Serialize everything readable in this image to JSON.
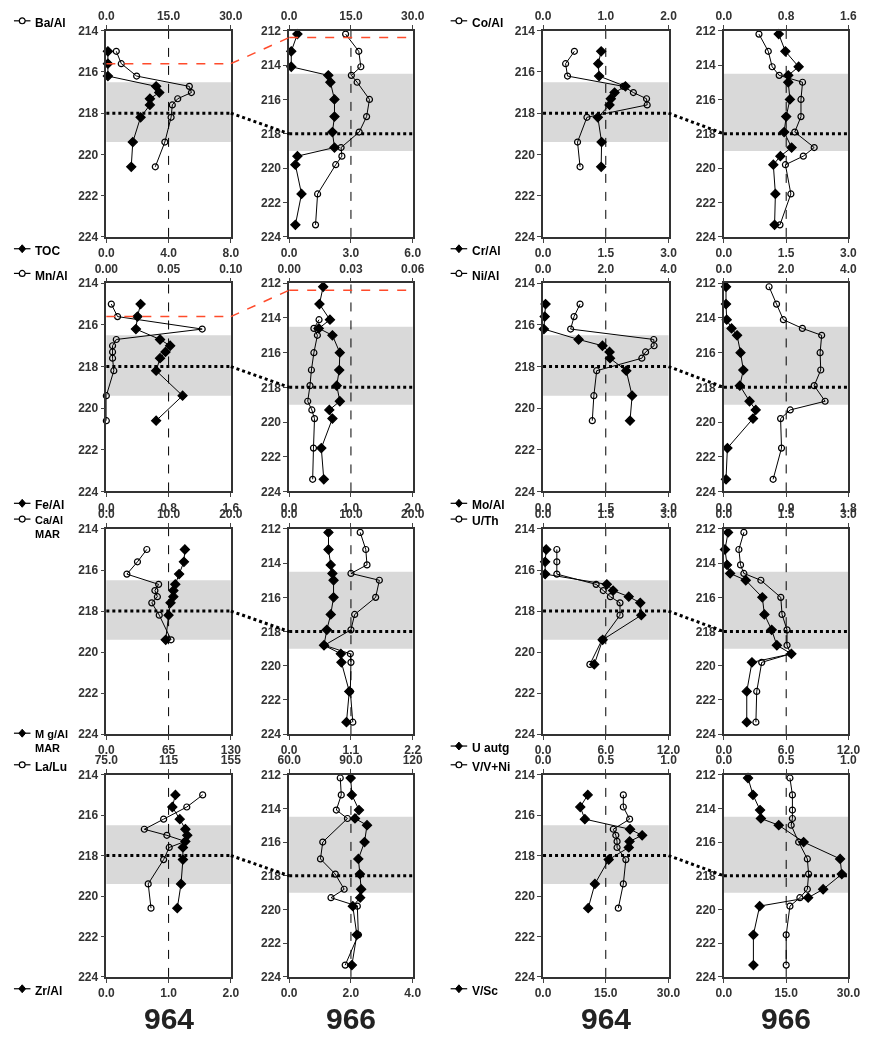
{
  "chart_data": [
    {
      "type": "line",
      "orientation": "horizontal",
      "x": [
        215.0,
        215.6,
        216.2,
        216.7,
        217.0,
        217.3,
        217.6,
        218.2,
        219.4,
        220.6
      ],
      "ylim": [
        224,
        214
      ],
      "yticks": [
        214,
        216,
        218,
        220,
        222,
        224
      ],
      "xlim": [
        0,
        8
      ],
      "xticks": [
        {
          "value": 0,
          "label": "0.0"
        },
        {
          "value": 4,
          "label": "4.0"
        },
        {
          "value": 8,
          "label": "8.0"
        }
      ],
      "x2lim": [
        0,
        30
      ],
      "x2ticks": [
        {
          "value": 0,
          "label": "0.0"
        },
        {
          "value": 15,
          "label": "15.0"
        },
        {
          "value": 30,
          "label": "30.0"
        }
      ],
      "legend": "left",
      "series": [
        {
          "name": "Ba/Al",
          "color": "#000000",
          "axis": "x2",
          "marker": "circle",
          "values": [
            2.4,
            3.6,
            7.3,
            20.0,
            20.5,
            17.2,
            15.9,
            15.6,
            14.1,
            11.8
          ]
        },
        {
          "name": "TOC",
          "color": "#000000",
          "marker": "diamond",
          "values": [
            0.1,
            0.1,
            0.1,
            3.2,
            3.4,
            2.8,
            2.8,
            2.2,
            1.7,
            1.6
          ]
        }
      ],
      "bands": [
        {
          "axis": "y",
          "from": 216.5,
          "to": 219.4,
          "color": "#d9d9d9"
        }
      ],
      "ref_lines": [
        {
          "axis": "x",
          "value": 4,
          "color": "#000000",
          "line_style": "dashed"
        },
        {
          "axis": "y",
          "value": 215.6,
          "color": "#ff4b2b",
          "line_style": "dashed"
        },
        {
          "axis": "y",
          "value": 218.0,
          "color": "#000000",
          "line_style": "dotted"
        }
      ]
    },
    {
      "type": "line",
      "orientation": "horizontal",
      "x": [
        212.2,
        213.2,
        214.1,
        214.6,
        215.0,
        216.0,
        217.0,
        217.9,
        218.8,
        219.3,
        219.8,
        221.5,
        223.3
      ],
      "ylim": [
        224,
        212
      ],
      "yticks": [
        212,
        214,
        216,
        218,
        220,
        222,
        224
      ],
      "xlim": [
        0,
        6
      ],
      "xticks": [
        {
          "value": 0,
          "label": "0.0"
        },
        {
          "value": 3,
          "label": "3.0"
        },
        {
          "value": 6,
          "label": "6.0"
        }
      ],
      "x2lim": [
        0,
        30
      ],
      "x2ticks": [
        {
          "value": 0,
          "label": "0.0"
        },
        {
          "value": 15,
          "label": "15.0"
        },
        {
          "value": 30,
          "label": "30.0"
        }
      ],
      "series": [
        {
          "color": "#000000",
          "axis": "x2",
          "marker": "circle",
          "values": [
            13.7,
            16.9,
            17.4,
            15.1,
            16.5,
            19.5,
            18.8,
            17.0,
            12.6,
            12.8,
            11.3,
            6.9,
            6.4
          ]
        },
        {
          "color": "#000000",
          "marker": "diamond",
          "values": [
            0.4,
            0.1,
            0.1,
            1.9,
            2.0,
            2.2,
            2.2,
            2.1,
            2.2,
            0.4,
            0.3,
            0.6,
            0.3
          ]
        }
      ],
      "bands": [
        {
          "axis": "y",
          "from": 214.5,
          "to": 219.0,
          "color": "#d9d9d9"
        }
      ],
      "ref_lines": [
        {
          "axis": "x",
          "value": 3,
          "color": "#000000",
          "line_style": "dashed"
        },
        {
          "axis": "y",
          "value": 212.4,
          "color": "#ff4b2b",
          "line_style": "dashed"
        },
        {
          "axis": "y",
          "value": 218.0,
          "color": "#000000",
          "line_style": "dotted"
        }
      ]
    },
    {
      "type": "line",
      "orientation": "horizontal",
      "x": [
        215.0,
        215.6,
        216.2,
        216.7,
        217.0,
        217.3,
        217.6,
        218.2,
        219.4,
        220.6
      ],
      "ylim": [
        224,
        214
      ],
      "yticks": [
        214,
        216,
        218,
        220,
        222,
        224
      ],
      "xlim": [
        0,
        3
      ],
      "xticks": [
        {
          "value": 0,
          "label": "0.0"
        },
        {
          "value": 1.5,
          "label": "1.5"
        },
        {
          "value": 3,
          "label": "3.0"
        }
      ],
      "x2lim": [
        0,
        2
      ],
      "x2ticks": [
        {
          "value": 0,
          "label": "0.0"
        },
        {
          "value": 1,
          "label": "1.0"
        },
        {
          "value": 2,
          "label": "2.0"
        }
      ],
      "legend": "left",
      "series": [
        {
          "name": "Co/Al",
          "color": "#000000",
          "axis": "x2",
          "marker": "circle",
          "values": [
            0.5,
            0.36,
            0.39,
            1.28,
            1.44,
            1.65,
            1.66,
            0.7,
            0.55,
            0.59
          ]
        },
        {
          "name": "Cr/Al",
          "color": "#000000",
          "marker": "diamond",
          "values": [
            1.39,
            1.32,
            1.34,
            1.97,
            1.71,
            1.62,
            1.59,
            1.31,
            1.4,
            1.39
          ]
        }
      ],
      "bands": [
        {
          "axis": "y",
          "from": 216.5,
          "to": 219.4,
          "color": "#d9d9d9"
        }
      ],
      "ref_lines": [
        {
          "axis": "x",
          "value": 1.5,
          "color": "#000000",
          "line_style": "dashed"
        },
        {
          "axis": "y",
          "value": 218.0,
          "color": "#000000",
          "line_style": "dotted"
        }
      ]
    },
    {
      "type": "line",
      "orientation": "horizontal",
      "x": [
        212.2,
        213.2,
        214.1,
        214.6,
        215.0,
        216.0,
        217.0,
        217.9,
        218.8,
        219.3,
        219.8,
        221.5,
        223.3
      ],
      "ylim": [
        224,
        212
      ],
      "yticks": [
        212,
        214,
        216,
        218,
        220,
        222,
        224
      ],
      "xlim": [
        0,
        3
      ],
      "xticks": [
        {
          "value": 0,
          "label": "0.0"
        },
        {
          "value": 1.5,
          "label": "1.5"
        },
        {
          "value": 3,
          "label": "3.0"
        }
      ],
      "x2lim": [
        0,
        1.6
      ],
      "x2ticks": [
        {
          "value": 0,
          "label": "0.0"
        },
        {
          "value": 0.8,
          "label": "0.8"
        },
        {
          "value": 1.6,
          "label": "1.6"
        }
      ],
      "series": [
        {
          "color": "#000000",
          "axis": "x2",
          "marker": "circle",
          "values": [
            0.45,
            0.57,
            0.62,
            0.71,
            1.01,
            0.99,
            0.99,
            0.91,
            1.16,
            1.02,
            0.79,
            0.86,
            0.72
          ]
        },
        {
          "color": "#000000",
          "marker": "diamond",
          "values": [
            1.32,
            1.48,
            1.8,
            1.55,
            1.55,
            1.59,
            1.5,
            1.45,
            1.63,
            1.36,
            1.19,
            1.24,
            1.22
          ]
        }
      ],
      "bands": [
        {
          "axis": "y",
          "from": 214.5,
          "to": 219.0,
          "color": "#d9d9d9"
        }
      ],
      "ref_lines": [
        {
          "axis": "x",
          "value": 1.5,
          "color": "#000000",
          "line_style": "dashed"
        },
        {
          "axis": "y",
          "value": 218.0,
          "color": "#000000",
          "line_style": "dotted"
        }
      ]
    },
    {
      "type": "line",
      "orientation": "horizontal",
      "x": [
        215.0,
        215.6,
        216.2,
        216.7,
        217.0,
        217.3,
        217.6,
        218.2,
        219.4,
        220.6
      ],
      "ylim": [
        224,
        214
      ],
      "yticks": [
        214,
        216,
        218,
        220,
        222,
        224
      ],
      "xlim": [
        0,
        1.6
      ],
      "xticks": [
        {
          "value": 0,
          "label": "0.0"
        },
        {
          "value": 0.8,
          "label": "0.8"
        },
        {
          "value": 1.6,
          "label": "1.6"
        }
      ],
      "x2lim": [
        0,
        0.1
      ],
      "x2ticks": [
        {
          "value": 0,
          "label": "0.00"
        },
        {
          "value": 0.05,
          "label": "0.05"
        },
        {
          "value": 0.1,
          "label": "0.10"
        }
      ],
      "legend": "left",
      "series": [
        {
          "name": "Mn/Al",
          "color": "#000000",
          "axis": "x2",
          "marker": "circle",
          "values": [
            0.004,
            0.009,
            0.077,
            0.008,
            0.005,
            0.005,
            0.005,
            0.006,
            0.0,
            0.0
          ]
        },
        {
          "name": "Fe/Al",
          "color": "#000000",
          "marker": "diamond",
          "values": [
            0.44,
            0.4,
            0.38,
            0.69,
            0.82,
            0.76,
            0.69,
            0.64,
            0.98,
            0.64
          ]
        }
      ],
      "bands": [
        {
          "axis": "y",
          "from": 216.5,
          "to": 219.4,
          "color": "#d9d9d9"
        }
      ],
      "ref_lines": [
        {
          "axis": "x",
          "value": 0.8,
          "color": "#000000",
          "line_style": "dashed"
        },
        {
          "axis": "y",
          "value": 215.6,
          "color": "#ff4b2b",
          "line_style": "dashed"
        },
        {
          "axis": "y",
          "value": 218.0,
          "color": "#000000",
          "line_style": "dotted"
        }
      ]
    },
    {
      "type": "line",
      "orientation": "horizontal",
      "x": [
        212.2,
        213.2,
        214.1,
        214.6,
        215.0,
        216.0,
        217.0,
        217.9,
        218.8,
        219.3,
        219.8,
        221.5,
        223.3
      ],
      "ylim": [
        224,
        212
      ],
      "yticks": [
        212,
        214,
        216,
        218,
        220,
        222,
        224
      ],
      "xlim": [
        0,
        2
      ],
      "xticks": [
        {
          "value": 0,
          "label": "0.0"
        },
        {
          "value": 1,
          "label": "1.0"
        },
        {
          "value": 2,
          "label": "2.0"
        }
      ],
      "x2lim": [
        0,
        0.06
      ],
      "x2ticks": [
        {
          "value": 0,
          "label": "0.00"
        },
        {
          "value": 0.03,
          "label": "0.03"
        },
        {
          "value": 0.06,
          "label": "0.06"
        }
      ],
      "series": [
        {
          "color": "#000000",
          "axis": "x2",
          "marker": "circle",
          "values": [
            null,
            null,
            0.0145,
            0.012,
            0.0137,
            0.012,
            0.0108,
            0.0101,
            0.009,
            0.011,
            0.0123,
            0.0118,
            0.0114
          ]
        },
        {
          "color": "#000000",
          "marker": "diamond",
          "values": [
            0.55,
            0.49,
            0.66,
            0.48,
            0.7,
            0.82,
            0.81,
            0.77,
            0.82,
            0.65,
            0.7,
            0.52,
            0.56
          ]
        }
      ],
      "bands": [
        {
          "axis": "y",
          "from": 214.5,
          "to": 219.0,
          "color": "#d9d9d9"
        }
      ],
      "ref_lines": [
        {
          "axis": "x",
          "value": 1,
          "color": "#000000",
          "line_style": "dashed"
        },
        {
          "axis": "y",
          "value": 212.4,
          "color": "#ff4b2b",
          "line_style": "dashed"
        },
        {
          "axis": "y",
          "value": 218.0,
          "color": "#000000",
          "line_style": "dotted"
        }
      ]
    },
    {
      "type": "line",
      "orientation": "horizontal",
      "x": [
        215.0,
        215.6,
        216.2,
        216.7,
        217.0,
        217.3,
        217.6,
        218.2,
        219.4,
        220.6
      ],
      "ylim": [
        224,
        214
      ],
      "yticks": [
        214,
        216,
        218,
        220,
        222,
        224
      ],
      "xlim": [
        0,
        3
      ],
      "xticks": [
        {
          "value": 0,
          "label": "0.0"
        },
        {
          "value": 1.5,
          "label": "1.5"
        },
        {
          "value": 3,
          "label": "3.0"
        }
      ],
      "x2lim": [
        0,
        4
      ],
      "x2ticks": [
        {
          "value": 0,
          "label": "0.0"
        },
        {
          "value": 2,
          "label": "2.0"
        },
        {
          "value": 4,
          "label": "4.0"
        }
      ],
      "legend": "left",
      "series": [
        {
          "name": "Ni/Al",
          "color": "#000000",
          "axis": "x2",
          "marker": "circle",
          "values": [
            1.18,
            0.99,
            0.88,
            3.53,
            3.54,
            3.27,
            3.15,
            1.71,
            1.62,
            1.57
          ]
        },
        {
          "name": "Mo/Al",
          "color": "#000000",
          "marker": "diamond",
          "values": [
            0.06,
            0.04,
            0.02,
            0.85,
            1.42,
            1.59,
            1.6,
            1.99,
            2.13,
            2.08
          ]
        }
      ],
      "bands": [
        {
          "axis": "y",
          "from": 216.5,
          "to": 219.4,
          "color": "#d9d9d9"
        }
      ],
      "ref_lines": [
        {
          "axis": "x",
          "value": 1.5,
          "color": "#000000",
          "line_style": "dashed"
        },
        {
          "axis": "y",
          "value": 218.0,
          "color": "#000000",
          "line_style": "dotted"
        }
      ]
    },
    {
      "type": "line",
      "orientation": "horizontal",
      "x": [
        212.2,
        213.2,
        214.1,
        214.6,
        215.0,
        216.0,
        217.0,
        217.9,
        218.8,
        219.3,
        219.8,
        221.5,
        223.3
      ],
      "ylim": [
        224,
        212
      ],
      "yticks": [
        212,
        214,
        216,
        218,
        220,
        222,
        224
      ],
      "xlim": [
        0,
        1.8
      ],
      "xticks": [
        {
          "value": 0,
          "label": "0.0"
        },
        {
          "value": 0.9,
          "label": "0.9"
        },
        {
          "value": 1.8,
          "label": "1.8"
        }
      ],
      "x2lim": [
        0,
        4
      ],
      "x2ticks": [
        {
          "value": 0,
          "label": "0.0"
        },
        {
          "value": 2,
          "label": "2.0"
        },
        {
          "value": 4,
          "label": "4.0"
        }
      ],
      "series": [
        {
          "color": "#000000",
          "axis": "x2",
          "marker": "circle",
          "values": [
            1.45,
            1.69,
            1.91,
            2.52,
            3.14,
            3.09,
            3.11,
            2.9,
            3.25,
            2.13,
            1.82,
            1.85,
            1.58
          ]
        },
        {
          "color": "#000000",
          "marker": "diamond",
          "values": [
            0.03,
            0.03,
            0.04,
            0.11,
            0.19,
            0.24,
            0.28,
            0.23,
            0.37,
            0.46,
            0.42,
            0.05,
            0.03
          ]
        }
      ],
      "bands": [
        {
          "axis": "y",
          "from": 214.5,
          "to": 219.0,
          "color": "#d9d9d9"
        }
      ],
      "ref_lines": [
        {
          "axis": "x",
          "value": 0.9,
          "color": "#000000",
          "line_style": "dashed"
        },
        {
          "axis": "y",
          "value": 218.0,
          "color": "#000000",
          "line_style": "dotted"
        }
      ]
    },
    {
      "type": "line",
      "orientation": "horizontal",
      "x": [
        215.0,
        215.6,
        216.2,
        216.7,
        217.0,
        217.3,
        217.6,
        218.2,
        219.4
      ],
      "ylim": [
        224,
        214
      ],
      "yticks": [
        214,
        216,
        218,
        220,
        222,
        224
      ],
      "xlim": [
        0,
        130
      ],
      "xticks": [
        {
          "value": 0,
          "label": "0.0"
        },
        {
          "value": 65,
          "label": "65"
        },
        {
          "value": 130,
          "label": "130"
        }
      ],
      "x2lim": [
        0,
        20
      ],
      "x2ticks": [
        {
          "value": 0,
          "label": "0.0"
        },
        {
          "value": 10,
          "label": "10.0"
        },
        {
          "value": 20,
          "label": "20.0"
        }
      ],
      "legend": "left",
      "series": [
        {
          "name": "Ca/Al MAR",
          "color": "#000000",
          "axis": "x2",
          "marker": "circle",
          "values": [
            6.5,
            5.0,
            3.3,
            8.4,
            7.8,
            8.2,
            7.3,
            8.5,
            10.4
          ]
        },
        {
          "name": "M g/Al MAR",
          "color": "#000000",
          "marker": "diamond",
          "values": [
            82,
            81,
            76,
            72,
            70,
            70,
            67,
            65,
            62
          ]
        }
      ],
      "bands": [
        {
          "axis": "y",
          "from": 216.5,
          "to": 219.4,
          "color": "#d9d9d9"
        }
      ],
      "ref_lines": [
        {
          "axis": "x",
          "value": 65,
          "color": "#000000",
          "line_style": "dashed"
        },
        {
          "axis": "y",
          "value": 218.0,
          "color": "#000000",
          "line_style": "dotted"
        }
      ]
    },
    {
      "type": "line",
      "orientation": "horizontal",
      "x": [
        212.2,
        213.2,
        214.1,
        214.6,
        215.0,
        216.0,
        217.0,
        217.9,
        218.8,
        219.3,
        219.8,
        221.5,
        223.3
      ],
      "ylim": [
        224,
        212
      ],
      "yticks": [
        212,
        214,
        216,
        218,
        220,
        222,
        224
      ],
      "xlim": [
        0,
        2.2
      ],
      "xticks": [
        {
          "value": 0,
          "label": "0.0"
        },
        {
          "value": 1.1,
          "label": "1.1"
        },
        {
          "value": 2.2,
          "label": "2.2"
        }
      ],
      "x2lim": [
        0,
        20
      ],
      "x2ticks": [
        {
          "value": 0,
          "label": "0.0"
        },
        {
          "value": 10,
          "label": "10.0"
        },
        {
          "value": 20,
          "label": "20.0"
        }
      ],
      "series": [
        {
          "color": "#000000",
          "axis": "x2",
          "marker": "circle",
          "values": [
            11.5,
            12.4,
            12.6,
            10.0,
            14.6,
            14.0,
            10.6,
            10.0,
            5.7,
            9.9,
            10.0,
            9.9,
            10.3
          ]
        },
        {
          "color": "#000000",
          "marker": "diamond",
          "values": [
            0.7,
            0.7,
            0.74,
            0.77,
            0.79,
            0.79,
            0.74,
            0.67,
            0.62,
            0.92,
            0.93,
            1.07,
            1.02
          ]
        }
      ],
      "bands": [
        {
          "axis": "y",
          "from": 214.5,
          "to": 219.0,
          "color": "#d9d9d9"
        }
      ],
      "ref_lines": [
        {
          "axis": "x",
          "value": 1.1,
          "color": "#000000",
          "line_style": "dashed"
        },
        {
          "axis": "y",
          "value": 218.0,
          "color": "#000000",
          "line_style": "dotted"
        }
      ]
    },
    {
      "type": "line",
      "orientation": "horizontal",
      "x": [
        215.0,
        215.6,
        216.2,
        216.7,
        217.0,
        217.3,
        217.6,
        218.2,
        219.4,
        220.6
      ],
      "ylim": [
        224,
        214
      ],
      "yticks": [
        214,
        216,
        218,
        220,
        222,
        224
      ],
      "xlim": [
        0,
        12
      ],
      "xticks": [
        {
          "value": 0,
          "label": "0.0"
        },
        {
          "value": 6,
          "label": "6.0"
        },
        {
          "value": 12,
          "label": "12.0"
        }
      ],
      "x2lim": [
        0,
        3
      ],
      "x2ticks": [
        {
          "value": 0,
          "label": "0.0"
        },
        {
          "value": 1.5,
          "label": "1.5"
        },
        {
          "value": 3,
          "label": "3.0"
        }
      ],
      "legend": "left",
      "series": [
        {
          "name": "U/Th",
          "color": "#000000",
          "axis": "x2",
          "marker": "circle",
          "values": [
            0.33,
            0.33,
            0.33,
            1.27,
            1.44,
            1.61,
            1.84,
            1.84,
            1.41,
            1.12
          ]
        },
        {
          "name": "U autg",
          "color": "#000000",
          "marker": "diamond",
          "values": [
            0.3,
            0.2,
            0.2,
            6.1,
            6.7,
            8.2,
            9.3,
            9.4,
            5.7,
            4.9
          ]
        }
      ],
      "bands": [
        {
          "axis": "y",
          "from": 216.5,
          "to": 219.4,
          "color": "#d9d9d9"
        }
      ],
      "ref_lines": [
        {
          "axis": "x",
          "value": 6,
          "color": "#000000",
          "line_style": "dashed"
        },
        {
          "axis": "y",
          "value": 218.0,
          "color": "#000000",
          "line_style": "dotted"
        }
      ]
    },
    {
      "type": "line",
      "orientation": "horizontal",
      "x": [
        212.2,
        213.2,
        214.1,
        214.6,
        215.0,
        216.0,
        217.0,
        217.9,
        218.8,
        219.3,
        219.8,
        221.5,
        223.3
      ],
      "ylim": [
        224,
        212
      ],
      "yticks": [
        212,
        214,
        216,
        218,
        220,
        222,
        224
      ],
      "xlim": [
        0,
        12
      ],
      "xticks": [
        {
          "value": 0,
          "label": "0.0"
        },
        {
          "value": 6,
          "label": "6.0"
        },
        {
          "value": 12,
          "label": "12.0"
        }
      ],
      "x2lim": [
        0,
        3
      ],
      "x2ticks": [
        {
          "value": 0,
          "label": "0.0"
        },
        {
          "value": 1.5,
          "label": "1.5"
        },
        {
          "value": 3,
          "label": "3.0"
        }
      ],
      "series": [
        {
          "color": "#000000",
          "axis": "x2",
          "marker": "circle",
          "values": [
            0.48,
            0.36,
            0.4,
            0.48,
            0.89,
            1.37,
            1.4,
            1.52,
            1.52,
            1.61,
            0.91,
            0.79,
            0.77
          ]
        },
        {
          "color": "#000000",
          "marker": "diamond",
          "values": [
            0.4,
            0.1,
            0.3,
            0.6,
            2.1,
            3.7,
            3.9,
            4.6,
            5.1,
            6.5,
            2.7,
            2.2,
            2.2
          ]
        }
      ],
      "bands": [
        {
          "axis": "y",
          "from": 214.5,
          "to": 219.0,
          "color": "#d9d9d9"
        }
      ],
      "ref_lines": [
        {
          "axis": "x",
          "value": 6,
          "color": "#000000",
          "line_style": "dashed"
        },
        {
          "axis": "y",
          "value": 218.0,
          "color": "#000000",
          "line_style": "dotted"
        }
      ]
    },
    {
      "type": "line",
      "orientation": "horizontal",
      "x": [
        215.0,
        215.6,
        216.2,
        216.7,
        217.0,
        217.3,
        217.6,
        218.2,
        219.4,
        220.6
      ],
      "ylim": [
        224,
        214
      ],
      "yticks": [
        214,
        216,
        218,
        220,
        222,
        224
      ],
      "xlim": [
        0,
        2
      ],
      "xticks": [
        {
          "value": 0,
          "label": "0.0"
        },
        {
          "value": 1,
          "label": "1.0"
        },
        {
          "value": 2,
          "label": "2.0"
        }
      ],
      "x2lim": [
        75,
        155
      ],
      "x2ticks": [
        {
          "value": 75,
          "label": "75.0"
        },
        {
          "value": 115,
          "label": "115"
        },
        {
          "value": 155,
          "label": "155"
        }
      ],
      "legend": "left",
      "series": [
        {
          "name": "La/Lu",
          "color": "#000000",
          "axis": "x2",
          "marker": "circle",
          "values": [
            136.9,
            126.7,
            111.8,
            99.4,
            113.9,
            125.6,
            115.4,
            111.8,
            101.9,
            103.7
          ]
        },
        {
          "name": "Zr/Al",
          "color": "#000000",
          "marker": "diamond",
          "values": [
            1.11,
            1.06,
            1.18,
            1.27,
            1.3,
            1.27,
            1.23,
            1.23,
            1.2,
            1.14
          ]
        }
      ],
      "bands": [
        {
          "axis": "y",
          "from": 216.5,
          "to": 219.4,
          "color": "#d9d9d9"
        }
      ],
      "ref_lines": [
        {
          "axis": "x",
          "value": 1,
          "color": "#000000",
          "line_style": "dashed"
        },
        {
          "axis": "y",
          "value": 218.0,
          "color": "#000000",
          "line_style": "dotted"
        }
      ],
      "annotations": [
        "964"
      ]
    },
    {
      "type": "line",
      "orientation": "horizontal",
      "x": [
        212.2,
        213.2,
        214.1,
        214.6,
        215.0,
        216.0,
        217.0,
        217.9,
        218.8,
        219.3,
        219.8,
        221.5,
        223.3
      ],
      "ylim": [
        224,
        212
      ],
      "yticks": [
        212,
        214,
        216,
        218,
        220,
        222,
        224
      ],
      "xlim": [
        0,
        4
      ],
      "xticks": [
        {
          "value": 0,
          "label": "0.0"
        },
        {
          "value": 2,
          "label": "2.0"
        },
        {
          "value": 4,
          "label": "4.0"
        }
      ],
      "x2lim": [
        60,
        120
      ],
      "x2ticks": [
        {
          "value": 60,
          "label": "60.0"
        },
        {
          "value": 90,
          "label": "90.0"
        },
        {
          "value": 120,
          "label": "120"
        }
      ],
      "series": [
        {
          "color": "#000000",
          "axis": "x2",
          "marker": "circle",
          "values": [
            84.8,
            85.3,
            82.9,
            88.3,
            null,
            76.3,
            75.2,
            82.4,
            86.7,
            80.3,
            93.1,
            93.6,
            87.2
          ]
        },
        {
          "color": "#000000",
          "marker": "diamond",
          "values": [
            1.99,
            2.03,
            2.26,
            2.13,
            2.52,
            2.44,
            2.24,
            2.29,
            2.33,
            2.3,
            2.06,
            2.19,
            2.03
          ]
        }
      ],
      "bands": [
        {
          "axis": "y",
          "from": 214.5,
          "to": 219.0,
          "color": "#d9d9d9"
        }
      ],
      "ref_lines": [
        {
          "axis": "x",
          "value": 2,
          "color": "#000000",
          "line_style": "dashed"
        },
        {
          "axis": "y",
          "value": 218.0,
          "color": "#000000",
          "line_style": "dotted"
        }
      ],
      "annotations": [
        "966"
      ]
    },
    {
      "type": "line",
      "orientation": "horizontal",
      "x": [
        215.0,
        215.6,
        216.2,
        216.7,
        217.0,
        217.3,
        217.6,
        218.2,
        219.4,
        220.6
      ],
      "ylim": [
        224,
        214
      ],
      "yticks": [
        214,
        216,
        218,
        220,
        222,
        224
      ],
      "xlim": [
        0,
        30
      ],
      "xticks": [
        {
          "value": 0,
          "label": "0.0"
        },
        {
          "value": 15,
          "label": "15.0"
        },
        {
          "value": 30,
          "label": "30.0"
        }
      ],
      "x2lim": [
        0,
        1
      ],
      "x2ticks": [
        {
          "value": 0,
          "label": "0.0"
        },
        {
          "value": 0.5,
          "label": "0.5"
        },
        {
          "value": 1,
          "label": "1.0"
        }
      ],
      "legend": "left",
      "series": [
        {
          "name": "V/V+Ni",
          "color": "#000000",
          "axis": "x2",
          "marker": "circle",
          "values": [
            0.64,
            0.64,
            0.69,
            0.56,
            0.58,
            0.59,
            0.59,
            0.66,
            0.64,
            0.6
          ]
        },
        {
          "name": "V/Sc",
          "color": "#000000",
          "marker": "diamond",
          "values": [
            10.7,
            8.9,
            10.0,
            20.8,
            23.7,
            20.7,
            20.5,
            15.7,
            12.4,
            10.8
          ]
        }
      ],
      "bands": [
        {
          "axis": "y",
          "from": 216.5,
          "to": 219.4,
          "color": "#d9d9d9"
        }
      ],
      "ref_lines": [
        {
          "axis": "x",
          "value": 15,
          "color": "#000000",
          "line_style": "dashed"
        },
        {
          "axis": "y",
          "value": 218.0,
          "color": "#000000",
          "line_style": "dotted"
        }
      ],
      "annotations": [
        "964"
      ]
    },
    {
      "type": "line",
      "orientation": "horizontal",
      "x": [
        212.2,
        213.2,
        214.1,
        214.6,
        215.0,
        216.0,
        217.0,
        217.9,
        218.8,
        219.3,
        219.8,
        221.5,
        223.3
      ],
      "ylim": [
        224,
        212
      ],
      "yticks": [
        212,
        214,
        216,
        218,
        220,
        222,
        224
      ],
      "xlim": [
        0,
        30
      ],
      "xticks": [
        {
          "value": 0,
          "label": "0.0"
        },
        {
          "value": 15,
          "label": "15.0"
        },
        {
          "value": 30,
          "label": "30.0"
        }
      ],
      "x2lim": [
        0,
        1
      ],
      "x2ticks": [
        {
          "value": 0,
          "label": "0.0"
        },
        {
          "value": 0.5,
          "label": "0.5"
        },
        {
          "value": 1,
          "label": "1.0"
        }
      ],
      "series": [
        {
          "color": "#000000",
          "axis": "x2",
          "marker": "circle",
          "values": [
            0.53,
            0.55,
            0.55,
            0.55,
            0.54,
            0.6,
            0.67,
            0.68,
            0.67,
            0.61,
            0.53,
            0.5,
            0.5
          ]
        },
        {
          "color": "#000000",
          "marker": "diamond",
          "values": [
            5.8,
            7.0,
            8.7,
            8.9,
            13.2,
            19.2,
            28.0,
            28.4,
            23.9,
            20.3,
            8.6,
            7.1,
            7.1
          ]
        }
      ],
      "bands": [
        {
          "axis": "y",
          "from": 214.5,
          "to": 219.0,
          "color": "#d9d9d9"
        }
      ],
      "ref_lines": [
        {
          "axis": "x",
          "value": 15,
          "color": "#000000",
          "line_style": "dashed"
        },
        {
          "axis": "y",
          "value": 218.0,
          "color": "#000000",
          "line_style": "dotted"
        }
      ],
      "annotations": [
        "966"
      ]
    }
  ]
}
